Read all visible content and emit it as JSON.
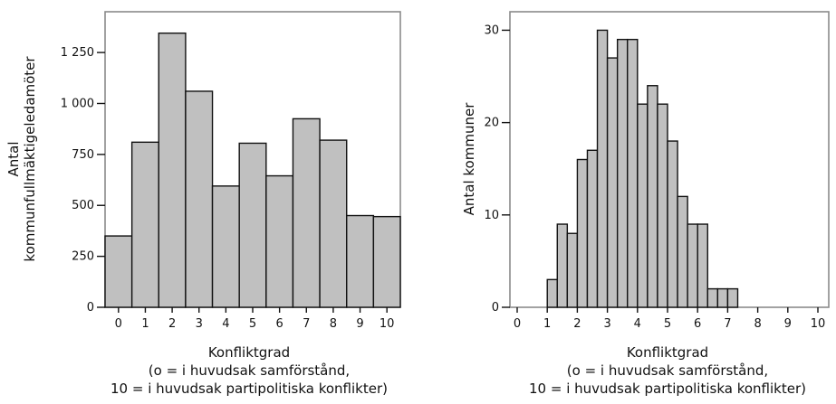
{
  "chart_data": [
    {
      "type": "bar",
      "categories": [
        "0",
        "1",
        "2",
        "3",
        "4",
        "5",
        "6",
        "7",
        "8",
        "9",
        "10"
      ],
      "values": [
        350,
        810,
        1345,
        1060,
        595,
        805,
        645,
        925,
        820,
        450,
        445
      ],
      "xlabel": "Konfliktgrad",
      "xlabel_lines": [
        "(o = i huvudsak samförstånd,",
        "10 = i huvudsak partipolitiska konflikter)"
      ],
      "ylabel_lines": [
        "Antal",
        "kommunfullmäktigeledamöter"
      ],
      "ylim": [
        0,
        1450
      ],
      "yticks": [
        0,
        250,
        500,
        750,
        1000,
        1250
      ],
      "ytick_labels": [
        "0",
        "250",
        "500",
        "750",
        "1 000",
        "1 250"
      ],
      "xtick_labels": [
        "0",
        "1",
        "2",
        "3",
        "4",
        "5",
        "6",
        "7",
        "8",
        "9",
        "10"
      ],
      "frame": true,
      "grid": false,
      "colors": {
        "bar": "#c0c0c0",
        "edge": "#111111",
        "frame": "#8a8a8a"
      }
    },
    {
      "type": "bar",
      "bin_width": 0.333,
      "bins": [
        {
          "x": 1.167,
          "value": 3
        },
        {
          "x": 1.5,
          "value": 9
        },
        {
          "x": 1.833,
          "value": 8
        },
        {
          "x": 2.167,
          "value": 16
        },
        {
          "x": 2.5,
          "value": 17
        },
        {
          "x": 2.833,
          "value": 30
        },
        {
          "x": 3.167,
          "value": 27
        },
        {
          "x": 3.5,
          "value": 29
        },
        {
          "x": 3.833,
          "value": 29
        },
        {
          "x": 4.167,
          "value": 22
        },
        {
          "x": 4.5,
          "value": 24
        },
        {
          "x": 4.833,
          "value": 22
        },
        {
          "x": 5.167,
          "value": 18
        },
        {
          "x": 5.5,
          "value": 12
        },
        {
          "x": 5.833,
          "value": 9
        },
        {
          "x": 6.167,
          "value": 9
        },
        {
          "x": 6.5,
          "value": 2
        },
        {
          "x": 6.833,
          "value": 2
        },
        {
          "x": 7.167,
          "value": 2
        }
      ],
      "xlabel": "Konfliktgrad",
      "xlabel_lines": [
        "(o = i huvudsak samförstånd,",
        "10 = i huvudsak partipolitiska konflikter)"
      ],
      "ylabel": "Antal kommuner",
      "xlim": [
        0,
        10.5
      ],
      "ylim": [
        0,
        32
      ],
      "yticks": [
        0,
        10,
        20,
        30
      ],
      "ytick_labels": [
        "0",
        "10",
        "20",
        "30"
      ],
      "xticks": [
        0,
        1,
        2,
        3,
        4,
        5,
        6,
        7,
        8,
        9,
        10
      ],
      "xtick_labels": [
        "0",
        "1",
        "2",
        "3",
        "4",
        "5",
        "6",
        "7",
        "8",
        "9",
        "10"
      ],
      "frame": true,
      "grid": false,
      "colors": {
        "bar": "#c0c0c0",
        "edge": "#111111",
        "frame": "#8a8a8a"
      }
    }
  ]
}
